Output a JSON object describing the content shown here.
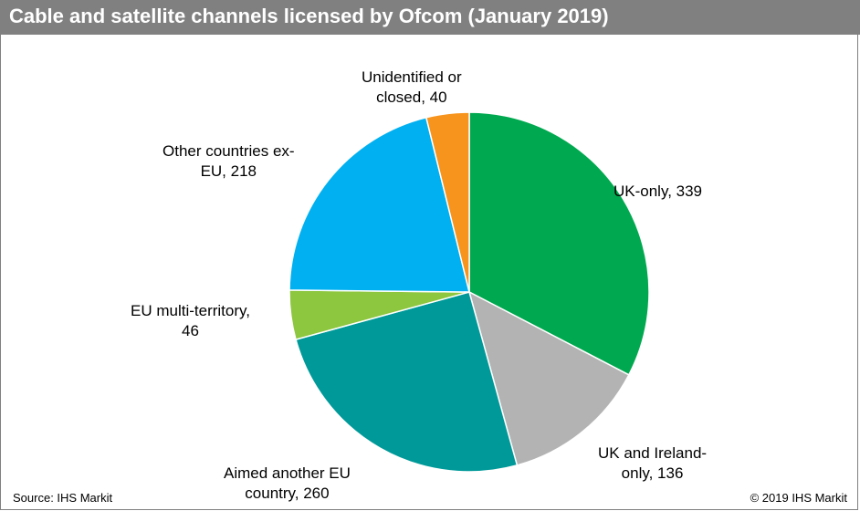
{
  "header": {
    "title": "Cable and satellite channels licensed by Ofcom (January 2019)"
  },
  "footer": {
    "source": "Source: IHS Markit",
    "copyright": "© 2019 IHS Markit"
  },
  "chart_data": {
    "type": "pie",
    "title": "Cable and satellite channels licensed by Ofcom (January 2019)",
    "categories": [
      "UK-only",
      "UK and Ireland-only",
      "Aimed another EU country",
      "EU multi-territory",
      "Other countries ex-EU",
      "Unidentified or closed"
    ],
    "values": [
      339,
      136,
      260,
      46,
      218,
      40
    ],
    "colors": [
      "#00A94F",
      "#B3B3B3",
      "#009999",
      "#8DC63F",
      "#00B0F0",
      "#F7941D"
    ],
    "labels": [
      [
        "UK-only, 339"
      ],
      [
        "UK and Ireland-",
        "only, 136"
      ],
      [
        "Aimed another EU",
        "country, 260"
      ],
      [
        "EU multi-territory,",
        "46"
      ],
      [
        "Other countries ex-",
        "EU, 218"
      ],
      [
        "Unidentified or",
        "closed, 40"
      ]
    ],
    "start": "12 o'clock",
    "direction": "clockwise",
    "legend": "none"
  }
}
